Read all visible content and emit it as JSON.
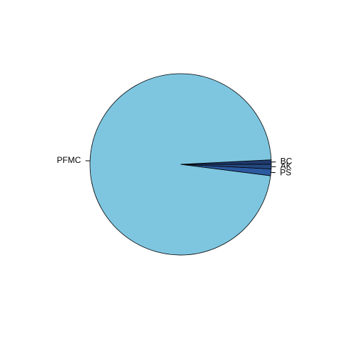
{
  "chart_data": {
    "type": "pie",
    "categories": [
      "BC",
      "PFMC",
      "PS",
      "AK"
    ],
    "values": [
      0.8,
      97.2,
      1.2,
      0.8
    ],
    "colors": [
      "#1f3a6e",
      "#7ec6e0",
      "#2c5aa0",
      "#24487f"
    ]
  }
}
